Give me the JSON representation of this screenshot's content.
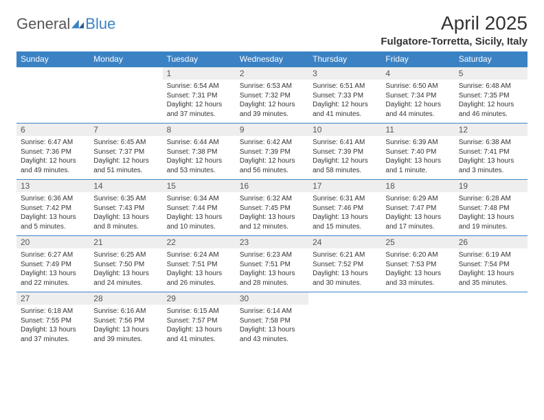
{
  "logo": {
    "general": "General",
    "blue": "Blue"
  },
  "title": "April 2025",
  "location": "Fulgatore-Torretta, Sicily, Italy",
  "colors": {
    "header_bg": "#3b82c4",
    "header_text": "#ffffff",
    "daynum_bg": "#eeeeee",
    "border": "#3b82c4",
    "body_text": "#333333"
  },
  "day_headers": [
    "Sunday",
    "Monday",
    "Tuesday",
    "Wednesday",
    "Thursday",
    "Friday",
    "Saturday"
  ],
  "weeks": [
    [
      {
        "n": "",
        "sr": "",
        "ss": "",
        "dl": ""
      },
      {
        "n": "",
        "sr": "",
        "ss": "",
        "dl": ""
      },
      {
        "n": "1",
        "sr": "Sunrise: 6:54 AM",
        "ss": "Sunset: 7:31 PM",
        "dl": "Daylight: 12 hours and 37 minutes."
      },
      {
        "n": "2",
        "sr": "Sunrise: 6:53 AM",
        "ss": "Sunset: 7:32 PM",
        "dl": "Daylight: 12 hours and 39 minutes."
      },
      {
        "n": "3",
        "sr": "Sunrise: 6:51 AM",
        "ss": "Sunset: 7:33 PM",
        "dl": "Daylight: 12 hours and 41 minutes."
      },
      {
        "n": "4",
        "sr": "Sunrise: 6:50 AM",
        "ss": "Sunset: 7:34 PM",
        "dl": "Daylight: 12 hours and 44 minutes."
      },
      {
        "n": "5",
        "sr": "Sunrise: 6:48 AM",
        "ss": "Sunset: 7:35 PM",
        "dl": "Daylight: 12 hours and 46 minutes."
      }
    ],
    [
      {
        "n": "6",
        "sr": "Sunrise: 6:47 AM",
        "ss": "Sunset: 7:36 PM",
        "dl": "Daylight: 12 hours and 49 minutes."
      },
      {
        "n": "7",
        "sr": "Sunrise: 6:45 AM",
        "ss": "Sunset: 7:37 PM",
        "dl": "Daylight: 12 hours and 51 minutes."
      },
      {
        "n": "8",
        "sr": "Sunrise: 6:44 AM",
        "ss": "Sunset: 7:38 PM",
        "dl": "Daylight: 12 hours and 53 minutes."
      },
      {
        "n": "9",
        "sr": "Sunrise: 6:42 AM",
        "ss": "Sunset: 7:39 PM",
        "dl": "Daylight: 12 hours and 56 minutes."
      },
      {
        "n": "10",
        "sr": "Sunrise: 6:41 AM",
        "ss": "Sunset: 7:39 PM",
        "dl": "Daylight: 12 hours and 58 minutes."
      },
      {
        "n": "11",
        "sr": "Sunrise: 6:39 AM",
        "ss": "Sunset: 7:40 PM",
        "dl": "Daylight: 13 hours and 1 minute."
      },
      {
        "n": "12",
        "sr": "Sunrise: 6:38 AM",
        "ss": "Sunset: 7:41 PM",
        "dl": "Daylight: 13 hours and 3 minutes."
      }
    ],
    [
      {
        "n": "13",
        "sr": "Sunrise: 6:36 AM",
        "ss": "Sunset: 7:42 PM",
        "dl": "Daylight: 13 hours and 5 minutes."
      },
      {
        "n": "14",
        "sr": "Sunrise: 6:35 AM",
        "ss": "Sunset: 7:43 PM",
        "dl": "Daylight: 13 hours and 8 minutes."
      },
      {
        "n": "15",
        "sr": "Sunrise: 6:34 AM",
        "ss": "Sunset: 7:44 PM",
        "dl": "Daylight: 13 hours and 10 minutes."
      },
      {
        "n": "16",
        "sr": "Sunrise: 6:32 AM",
        "ss": "Sunset: 7:45 PM",
        "dl": "Daylight: 13 hours and 12 minutes."
      },
      {
        "n": "17",
        "sr": "Sunrise: 6:31 AM",
        "ss": "Sunset: 7:46 PM",
        "dl": "Daylight: 13 hours and 15 minutes."
      },
      {
        "n": "18",
        "sr": "Sunrise: 6:29 AM",
        "ss": "Sunset: 7:47 PM",
        "dl": "Daylight: 13 hours and 17 minutes."
      },
      {
        "n": "19",
        "sr": "Sunrise: 6:28 AM",
        "ss": "Sunset: 7:48 PM",
        "dl": "Daylight: 13 hours and 19 minutes."
      }
    ],
    [
      {
        "n": "20",
        "sr": "Sunrise: 6:27 AM",
        "ss": "Sunset: 7:49 PM",
        "dl": "Daylight: 13 hours and 22 minutes."
      },
      {
        "n": "21",
        "sr": "Sunrise: 6:25 AM",
        "ss": "Sunset: 7:50 PM",
        "dl": "Daylight: 13 hours and 24 minutes."
      },
      {
        "n": "22",
        "sr": "Sunrise: 6:24 AM",
        "ss": "Sunset: 7:51 PM",
        "dl": "Daylight: 13 hours and 26 minutes."
      },
      {
        "n": "23",
        "sr": "Sunrise: 6:23 AM",
        "ss": "Sunset: 7:51 PM",
        "dl": "Daylight: 13 hours and 28 minutes."
      },
      {
        "n": "24",
        "sr": "Sunrise: 6:21 AM",
        "ss": "Sunset: 7:52 PM",
        "dl": "Daylight: 13 hours and 30 minutes."
      },
      {
        "n": "25",
        "sr": "Sunrise: 6:20 AM",
        "ss": "Sunset: 7:53 PM",
        "dl": "Daylight: 13 hours and 33 minutes."
      },
      {
        "n": "26",
        "sr": "Sunrise: 6:19 AM",
        "ss": "Sunset: 7:54 PM",
        "dl": "Daylight: 13 hours and 35 minutes."
      }
    ],
    [
      {
        "n": "27",
        "sr": "Sunrise: 6:18 AM",
        "ss": "Sunset: 7:55 PM",
        "dl": "Daylight: 13 hours and 37 minutes."
      },
      {
        "n": "28",
        "sr": "Sunrise: 6:16 AM",
        "ss": "Sunset: 7:56 PM",
        "dl": "Daylight: 13 hours and 39 minutes."
      },
      {
        "n": "29",
        "sr": "Sunrise: 6:15 AM",
        "ss": "Sunset: 7:57 PM",
        "dl": "Daylight: 13 hours and 41 minutes."
      },
      {
        "n": "30",
        "sr": "Sunrise: 6:14 AM",
        "ss": "Sunset: 7:58 PM",
        "dl": "Daylight: 13 hours and 43 minutes."
      },
      {
        "n": "",
        "sr": "",
        "ss": "",
        "dl": ""
      },
      {
        "n": "",
        "sr": "",
        "ss": "",
        "dl": ""
      },
      {
        "n": "",
        "sr": "",
        "ss": "",
        "dl": ""
      }
    ]
  ]
}
